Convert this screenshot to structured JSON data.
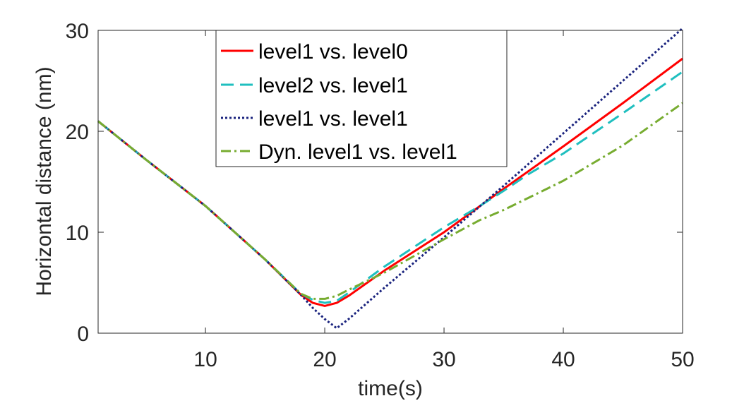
{
  "chart_data": {
    "type": "line",
    "title": "",
    "xlabel": "time(s)",
    "ylabel": "Horizontal distance (nm)",
    "xlim": [
      1,
      50
    ],
    "ylim": [
      0,
      30
    ],
    "xticks": [
      10,
      20,
      30,
      40,
      50
    ],
    "yticks": [
      0,
      10,
      20,
      30
    ],
    "grid": false,
    "legend_position": "top-center",
    "series": [
      {
        "name": "level1 vs. level0",
        "color": "#ff0000",
        "style": "solid",
        "x": [
          1,
          5,
          10,
          15,
          18,
          19,
          20,
          21,
          22,
          25,
          30,
          35,
          40,
          45,
          50
        ],
        "y": [
          21,
          17.2,
          12.6,
          7.3,
          3.8,
          3.0,
          2.7,
          3.0,
          3.7,
          6.2,
          10.0,
          14.3,
          18.5,
          22.8,
          27.2
        ]
      },
      {
        "name": "level2 vs. level1",
        "color": "#1fbfbf",
        "style": "dashed",
        "x": [
          1,
          5,
          10,
          15,
          18,
          19,
          20,
          21,
          22,
          25,
          30,
          33,
          35,
          37,
          40,
          45,
          50
        ],
        "y": [
          21,
          17.2,
          12.6,
          7.3,
          3.9,
          3.3,
          3.0,
          3.2,
          4.0,
          6.6,
          10.5,
          12.6,
          14.1,
          15.7,
          17.8,
          21.8,
          25.9
        ]
      },
      {
        "name": "level1 vs. level1",
        "color": "#1a237e",
        "style": "dotted",
        "x": [
          1,
          5,
          10,
          15,
          18,
          19,
          20,
          21,
          22,
          25,
          30,
          35,
          40,
          45,
          50
        ],
        "y": [
          21,
          17.2,
          12.6,
          7.3,
          3.8,
          2.5,
          1.4,
          0.5,
          1.4,
          4.5,
          9.5,
          14.6,
          19.8,
          25.0,
          30.2
        ]
      },
      {
        "name": "Dyn. level1 vs. level1",
        "color": "#77ac30",
        "style": "dashdot",
        "x": [
          1,
          5,
          10,
          15,
          18,
          19,
          20,
          21,
          22,
          25,
          30,
          33,
          35,
          40,
          45,
          50
        ],
        "y": [
          21,
          17.2,
          12.6,
          7.3,
          3.9,
          3.4,
          3.4,
          3.7,
          4.3,
          6.0,
          9.3,
          11.2,
          12.2,
          15.1,
          18.6,
          22.8
        ]
      }
    ]
  }
}
